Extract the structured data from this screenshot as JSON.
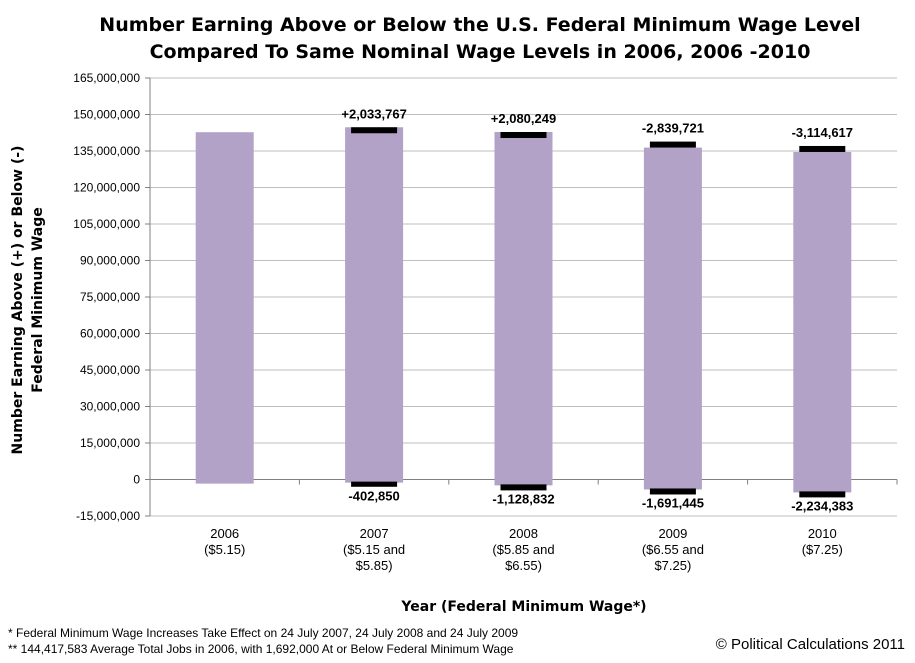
{
  "chart_data": {
    "type": "bar",
    "title": "Number Earning Above or Below the U.S. Federal Minimum Wage Level",
    "subtitle": "Compared To Same Nominal Wage Levels in 2006, 2006 -2010",
    "ylabel_line1": "Number Earning Above (+) or Below (-)",
    "ylabel_line2": "Federal Minimum Wage",
    "xlabel": "Year (Federal Minimum Wage*)",
    "ylim": [
      -15000000,
      165000000
    ],
    "yticks": [
      {
        "value": 165000000,
        "label": "165,000,000"
      },
      {
        "value": 150000000,
        "label": "150,000,000"
      },
      {
        "value": 135000000,
        "label": "135,000,000"
      },
      {
        "value": 120000000,
        "label": "120,000,000"
      },
      {
        "value": 105000000,
        "label": "105,000,000"
      },
      {
        "value": 90000000,
        "label": "90,000,000"
      },
      {
        "value": 75000000,
        "label": "75,000,000"
      },
      {
        "value": 60000000,
        "label": "60,000,000"
      },
      {
        "value": 45000000,
        "label": "45,000,000"
      },
      {
        "value": 30000000,
        "label": "30,000,000"
      },
      {
        "value": 15000000,
        "label": "15,000,000"
      },
      {
        "value": 0,
        "label": "0"
      },
      {
        "value": -15000000,
        "label": "-15,000,000"
      }
    ],
    "grid": "horizontal",
    "categories": [
      {
        "label_lines": [
          "2006",
          "($5.15)"
        ],
        "low": -1692000,
        "high": 142725583,
        "top_change": null,
        "top_label": "",
        "bottom_change": null,
        "bottom_label": ""
      },
      {
        "label_lines": [
          "2007",
          "($5.15 and",
          "$5.85)"
        ],
        "low": -1289150,
        "high": 144759350,
        "top_change": 2033767,
        "top_label": "+2,033,767",
        "bottom_change": -402850,
        "bottom_label": "-402,850"
      },
      {
        "label_lines": [
          "2008",
          "($5.85 and",
          "$6.55)"
        ],
        "low": -2418000,
        "high": 142806000,
        "top_change": 2080249,
        "top_label": "+2,080,249",
        "bottom_change": -1128832,
        "bottom_label": "-1,128,832"
      },
      {
        "label_lines": [
          "2009",
          "($6.55 and",
          "$7.25)"
        ],
        "low": -4100000,
        "high": 136400000,
        "top_change": -2839721,
        "top_label": "-2,839,721",
        "bottom_change": -1691445,
        "bottom_label": "-1,691,445"
      },
      {
        "label_lines": [
          "2010",
          "($7.25)"
        ],
        "low": -5300000,
        "high": 134600000,
        "top_change": -3114617,
        "top_label": "-3,114,617",
        "bottom_change": -2234383,
        "bottom_label": "-2,234,383"
      }
    ]
  },
  "colors": {
    "bar": "#b3a2c7",
    "change_marker": "#000000",
    "grid": "#bfbfbf",
    "axis": "#808080"
  },
  "footnotes": {
    "note1": "* Federal Minimum Wage Increases Take Effect on 24 July 2007, 24 July 2008 and 24 July 2009",
    "note2": "** 144,417,583 Average Total Jobs in 2006, with 1,692,000 At or Below Federal Minimum Wage"
  },
  "credit": "© Political Calculations 2011"
}
